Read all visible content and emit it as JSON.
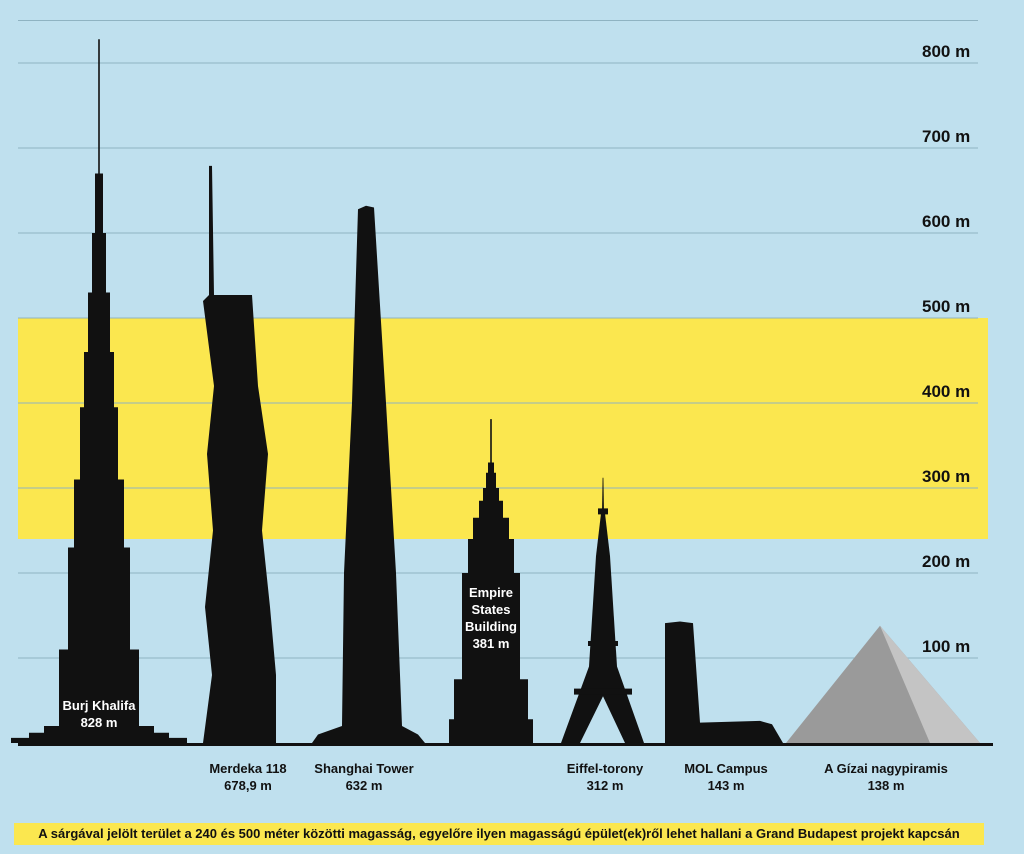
{
  "colors": {
    "background": "#bfe0ee",
    "highlight_band": "#fbe74f",
    "buildings": "#111111",
    "pyramid_fill": "#9a9a9a"
  },
  "chart_data": {
    "type": "bar",
    "ylabel": "",
    "ylim": [
      0,
      850
    ],
    "y_ticks": [
      {
        "value": 100,
        "label": "100 m"
      },
      {
        "value": 200,
        "label": "200 m"
      },
      {
        "value": 300,
        "label": "300 m"
      },
      {
        "value": 400,
        "label": "400 m"
      },
      {
        "value": 500,
        "label": "500 m"
      },
      {
        "value": 600,
        "label": "600 m"
      },
      {
        "value": 700,
        "label": "700 m"
      },
      {
        "value": 800,
        "label": "800 m"
      }
    ],
    "grid": true,
    "highlight_band": {
      "from": 240,
      "to": 500
    },
    "categories": [
      "Burj Khalifa",
      "Merdeka 118",
      "Shanghai Tower",
      "Empire States Building",
      "Eiffel-torony",
      "MOL Campus",
      "A Gízai nagypiramis"
    ],
    "values": [
      828,
      678.9,
      632,
      381,
      312,
      143,
      138
    ],
    "value_labels": [
      "828 m",
      "678,9 m",
      "632 m",
      "381 m",
      "312 m",
      "143 m",
      "138 m"
    ],
    "label_lines": [
      [
        "Burj Khalifa"
      ],
      [
        "Merdeka 118"
      ],
      [
        "Shanghai Tower"
      ],
      [
        "Empire",
        "States",
        "Building"
      ],
      [
        "Eiffel-torony"
      ],
      [
        "MOL Campus"
      ],
      [
        "A Gízai nagypiramis"
      ]
    ],
    "annotation": "A sárgával jelölt terület a 240 és 500 méter közötti magasság, egyelőre ilyen magasságú épület(ek)ről lehet hallani a Grand Budapest projekt kapcsán"
  }
}
